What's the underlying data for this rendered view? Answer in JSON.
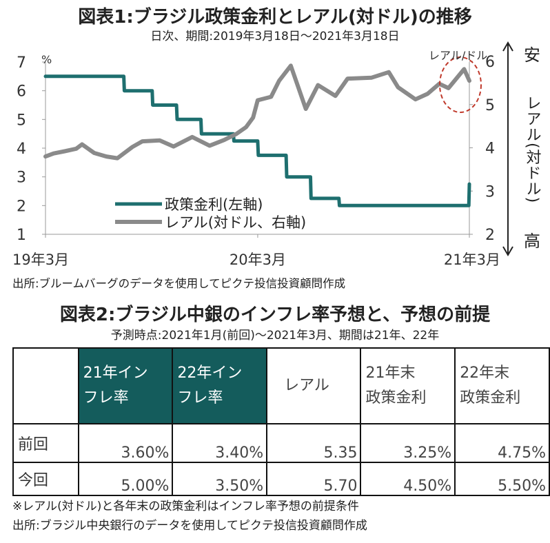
{
  "chart1": {
    "title": "図表1:ブラジル政策金利とレアル(対ドル)の推移",
    "subtitle": "日次、期間:2019年3月18日〜2021年3月18日",
    "source": "出所:ブルームバーグのデータを使用してピクテ投信投資顧問作成"
  },
  "chart_data": {
    "type": "line",
    "left_axis": {
      "unit": "%",
      "ylim": [
        1,
        7
      ],
      "ticks": [
        "1",
        "2",
        "3",
        "4",
        "5",
        "6",
        "7"
      ]
    },
    "right_axis": {
      "label": "レアル(対ドル)",
      "unit_label": "レアル/ドル",
      "ylim": [
        2,
        6
      ],
      "ticks": [
        "2",
        "3",
        "4",
        "5",
        "6"
      ],
      "top_label": "安",
      "bottom_label": "高",
      "inverted_meaning": true
    },
    "x_ticks": [
      {
        "label": "19年3月",
        "date": "2019-03"
      },
      {
        "label": "20年3月",
        "date": "2020-03"
      },
      {
        "label": "21年3月",
        "date": "2021-03"
      }
    ],
    "legend": [
      "政策金利(左軸)",
      "レアル(対ドル、右軸)"
    ],
    "series": [
      {
        "name": "政策金利(左軸)",
        "axis": "left",
        "color": "#1e6f6f",
        "points": [
          {
            "x": "2019-03-18",
            "y": 6.5
          },
          {
            "x": "2019-07-31",
            "y": 6.5
          },
          {
            "x": "2019-08-01",
            "y": 6.0
          },
          {
            "x": "2019-09-18",
            "y": 6.0
          },
          {
            "x": "2019-09-19",
            "y": 5.5
          },
          {
            "x": "2019-10-30",
            "y": 5.5
          },
          {
            "x": "2019-10-31",
            "y": 5.0
          },
          {
            "x": "2019-12-11",
            "y": 5.0
          },
          {
            "x": "2019-12-12",
            "y": 4.5
          },
          {
            "x": "2020-02-05",
            "y": 4.5
          },
          {
            "x": "2020-02-06",
            "y": 4.25
          },
          {
            "x": "2020-03-18",
            "y": 4.25
          },
          {
            "x": "2020-03-19",
            "y": 3.75
          },
          {
            "x": "2020-05-06",
            "y": 3.75
          },
          {
            "x": "2020-05-07",
            "y": 3.0
          },
          {
            "x": "2020-06-17",
            "y": 3.0
          },
          {
            "x": "2020-06-18",
            "y": 2.25
          },
          {
            "x": "2020-08-05",
            "y": 2.25
          },
          {
            "x": "2020-08-06",
            "y": 2.0
          },
          {
            "x": "2021-03-17",
            "y": 2.0
          },
          {
            "x": "2021-03-18",
            "y": 2.75
          }
        ]
      },
      {
        "name": "レアル(対ドル、右軸)",
        "axis": "right",
        "color": "#8a8a8a",
        "points": [
          {
            "x": "2019-03-18",
            "y": 3.8
          },
          {
            "x": "2019-04-01",
            "y": 3.87
          },
          {
            "x": "2019-04-20",
            "y": 3.92
          },
          {
            "x": "2019-05-10",
            "y": 3.98
          },
          {
            "x": "2019-05-20",
            "y": 4.08
          },
          {
            "x": "2019-06-10",
            "y": 3.88
          },
          {
            "x": "2019-07-01",
            "y": 3.8
          },
          {
            "x": "2019-07-20",
            "y": 3.76
          },
          {
            "x": "2019-08-15",
            "y": 4.02
          },
          {
            "x": "2019-09-01",
            "y": 4.15
          },
          {
            "x": "2019-10-01",
            "y": 4.17
          },
          {
            "x": "2019-10-25",
            "y": 4.03
          },
          {
            "x": "2019-11-26",
            "y": 4.25
          },
          {
            "x": "2019-12-26",
            "y": 4.05
          },
          {
            "x": "2020-01-20",
            "y": 4.18
          },
          {
            "x": "2020-02-10",
            "y": 4.32
          },
          {
            "x": "2020-02-27",
            "y": 4.48
          },
          {
            "x": "2020-03-10",
            "y": 4.7
          },
          {
            "x": "2020-03-18",
            "y": 5.1
          },
          {
            "x": "2020-04-10",
            "y": 5.18
          },
          {
            "x": "2020-04-24",
            "y": 5.55
          },
          {
            "x": "2020-05-14",
            "y": 5.9
          },
          {
            "x": "2020-06-09",
            "y": 4.9
          },
          {
            "x": "2020-06-30",
            "y": 5.45
          },
          {
            "x": "2020-07-30",
            "y": 5.2
          },
          {
            "x": "2020-08-20",
            "y": 5.6
          },
          {
            "x": "2020-09-30",
            "y": 5.62
          },
          {
            "x": "2020-10-30",
            "y": 5.75
          },
          {
            "x": "2020-11-15",
            "y": 5.4
          },
          {
            "x": "2020-12-15",
            "y": 5.12
          },
          {
            "x": "2021-01-05",
            "y": 5.25
          },
          {
            "x": "2021-01-25",
            "y": 5.48
          },
          {
            "x": "2021-02-10",
            "y": 5.38
          },
          {
            "x": "2021-03-09",
            "y": 5.82
          },
          {
            "x": "2021-03-18",
            "y": 5.55
          }
        ]
      }
    ],
    "highlight": {
      "type": "dashed-ellipse",
      "color": "#c0392b",
      "around": "2021-02〜2021-03, 5.3〜6.0"
    }
  },
  "table": {
    "title": "図表2:ブラジル中銀のインフレ率予想と、予想の前提",
    "subtitle": "予測時点:2021年1月(前回)〜2021年3月、期間は21年、22年",
    "columns": [
      {
        "line1": "21年イン",
        "line2": "フレ率",
        "highlight": true
      },
      {
        "line1": "22年イン",
        "line2": "フレ率",
        "highlight": true
      },
      {
        "line1": "レアル",
        "line2": "",
        "highlight": false
      },
      {
        "line1": "21年末",
        "line2": "政策金利",
        "highlight": false
      },
      {
        "line1": "22年末",
        "line2": "政策金利",
        "highlight": false
      }
    ],
    "rows": [
      {
        "label": "前回",
        "values": [
          "3.60%",
          "3.40%",
          "5.35",
          "3.25%",
          "4.75%"
        ]
      },
      {
        "label": "今回",
        "values": [
          "5.00%",
          "3.50%",
          "5.70",
          "4.50%",
          "5.50%"
        ]
      }
    ],
    "highlight_color": "#145c5c",
    "note": "※レアル(対ドル)と各年末の政策金利はインフレ率予想の前提条件",
    "source": "出所:ブラジル中央銀行のデータを使用してピクテ投信投資顧問作成"
  }
}
